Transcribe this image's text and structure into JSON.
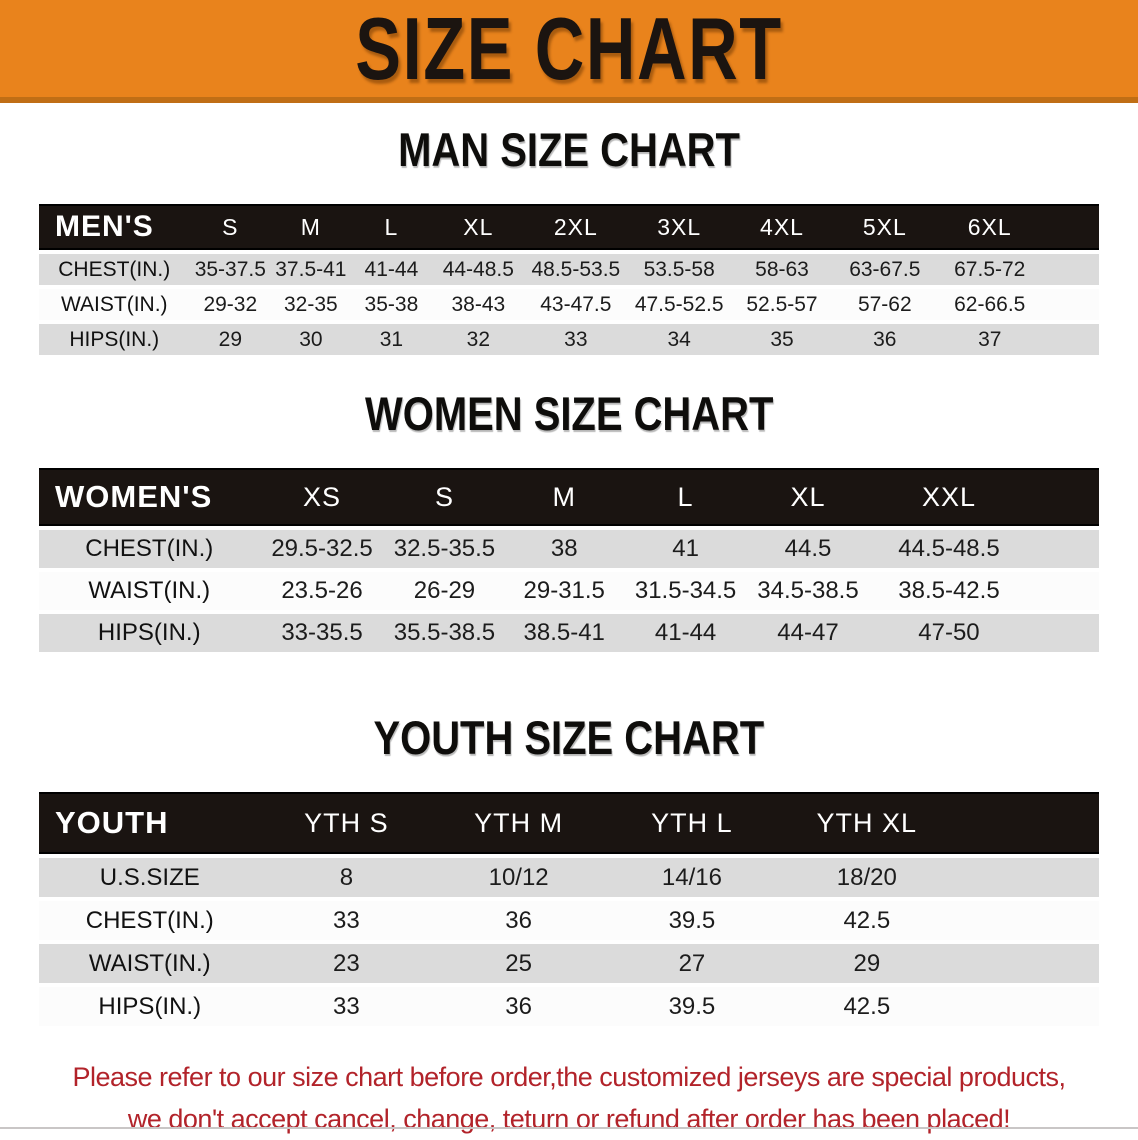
{
  "banner": {
    "title": "SIZE CHART",
    "bg_color": "#E9831C",
    "text_color": "#1B1410"
  },
  "sections": [
    {
      "title": "MAN SIZE CHART",
      "table": {
        "label": "MEN'S",
        "columns": [
          "S",
          "M",
          "L",
          "XL",
          "2XL",
          "3XL",
          "4XL",
          "5XL",
          "6XL"
        ],
        "rows": [
          {
            "label": "CHEST(IN.)",
            "values": [
              "35-37.5",
              "37.5-41",
              "41-44",
              "44-48.5",
              "48.5-53.5",
              "53.5-58",
              "58-63",
              "63-67.5",
              "67.5-72"
            ]
          },
          {
            "label": "WAIST(IN.)",
            "values": [
              "29-32",
              "32-35",
              "35-38",
              "38-43",
              "43-47.5",
              "47.5-52.5",
              "52.5-57",
              "57-62",
              "62-66.5"
            ]
          },
          {
            "label": "HIPS(IN.)",
            "values": [
              "29",
              "30",
              "31",
              "32",
              "33",
              "34",
              "35",
              "36",
              "37"
            ]
          }
        ]
      }
    },
    {
      "title": "WOMEN SIZE CHART",
      "table": {
        "label": "WOMEN'S",
        "columns": [
          "XS",
          "S",
          "M",
          "L",
          "XL",
          "XXL"
        ],
        "rows": [
          {
            "label": "CHEST(IN.)",
            "values": [
              "29.5-32.5",
              "32.5-35.5",
              "38",
              "41",
              "44.5",
              "44.5-48.5"
            ]
          },
          {
            "label": "WAIST(IN.)",
            "values": [
              "23.5-26",
              "26-29",
              "29-31.5",
              "31.5-34.5",
              "34.5-38.5",
              "38.5-42.5"
            ]
          },
          {
            "label": "HIPS(IN.)",
            "values": [
              "33-35.5",
              "35.5-38.5",
              "38.5-41",
              "41-44",
              "44-47",
              "47-50"
            ]
          }
        ]
      }
    },
    {
      "title": "YOUTH SIZE CHART",
      "table": {
        "label": "YOUTH",
        "columns": [
          "YTH S",
          "YTH M",
          "YTH L",
          "YTH XL"
        ],
        "rows": [
          {
            "label": "U.S.SIZE",
            "values": [
              "8",
              "10/12",
              "14/16",
              "18/20"
            ]
          },
          {
            "label": "CHEST(IN.)",
            "values": [
              "33",
              "36",
              "39.5",
              "42.5"
            ]
          },
          {
            "label": "WAIST(IN.)",
            "values": [
              "23",
              "25",
              "27",
              "29"
            ]
          },
          {
            "label": "HIPS(IN.)",
            "values": [
              "33",
              "36",
              "39.5",
              "42.5"
            ]
          }
        ]
      }
    }
  ],
  "footer": {
    "lines": [
      "Please refer to our size chart before order,the customized jerseys are special products,",
      "we don't accept cancel, change, teturn or refund after order has been placed!"
    ],
    "text_color": "#B2232A"
  },
  "colors": {
    "accent_orange": "#E9831C",
    "header_black": "#1A1411",
    "row_gray": "#DBDBDB",
    "row_white": "#FCFCFC",
    "notice_red": "#B2232A"
  }
}
